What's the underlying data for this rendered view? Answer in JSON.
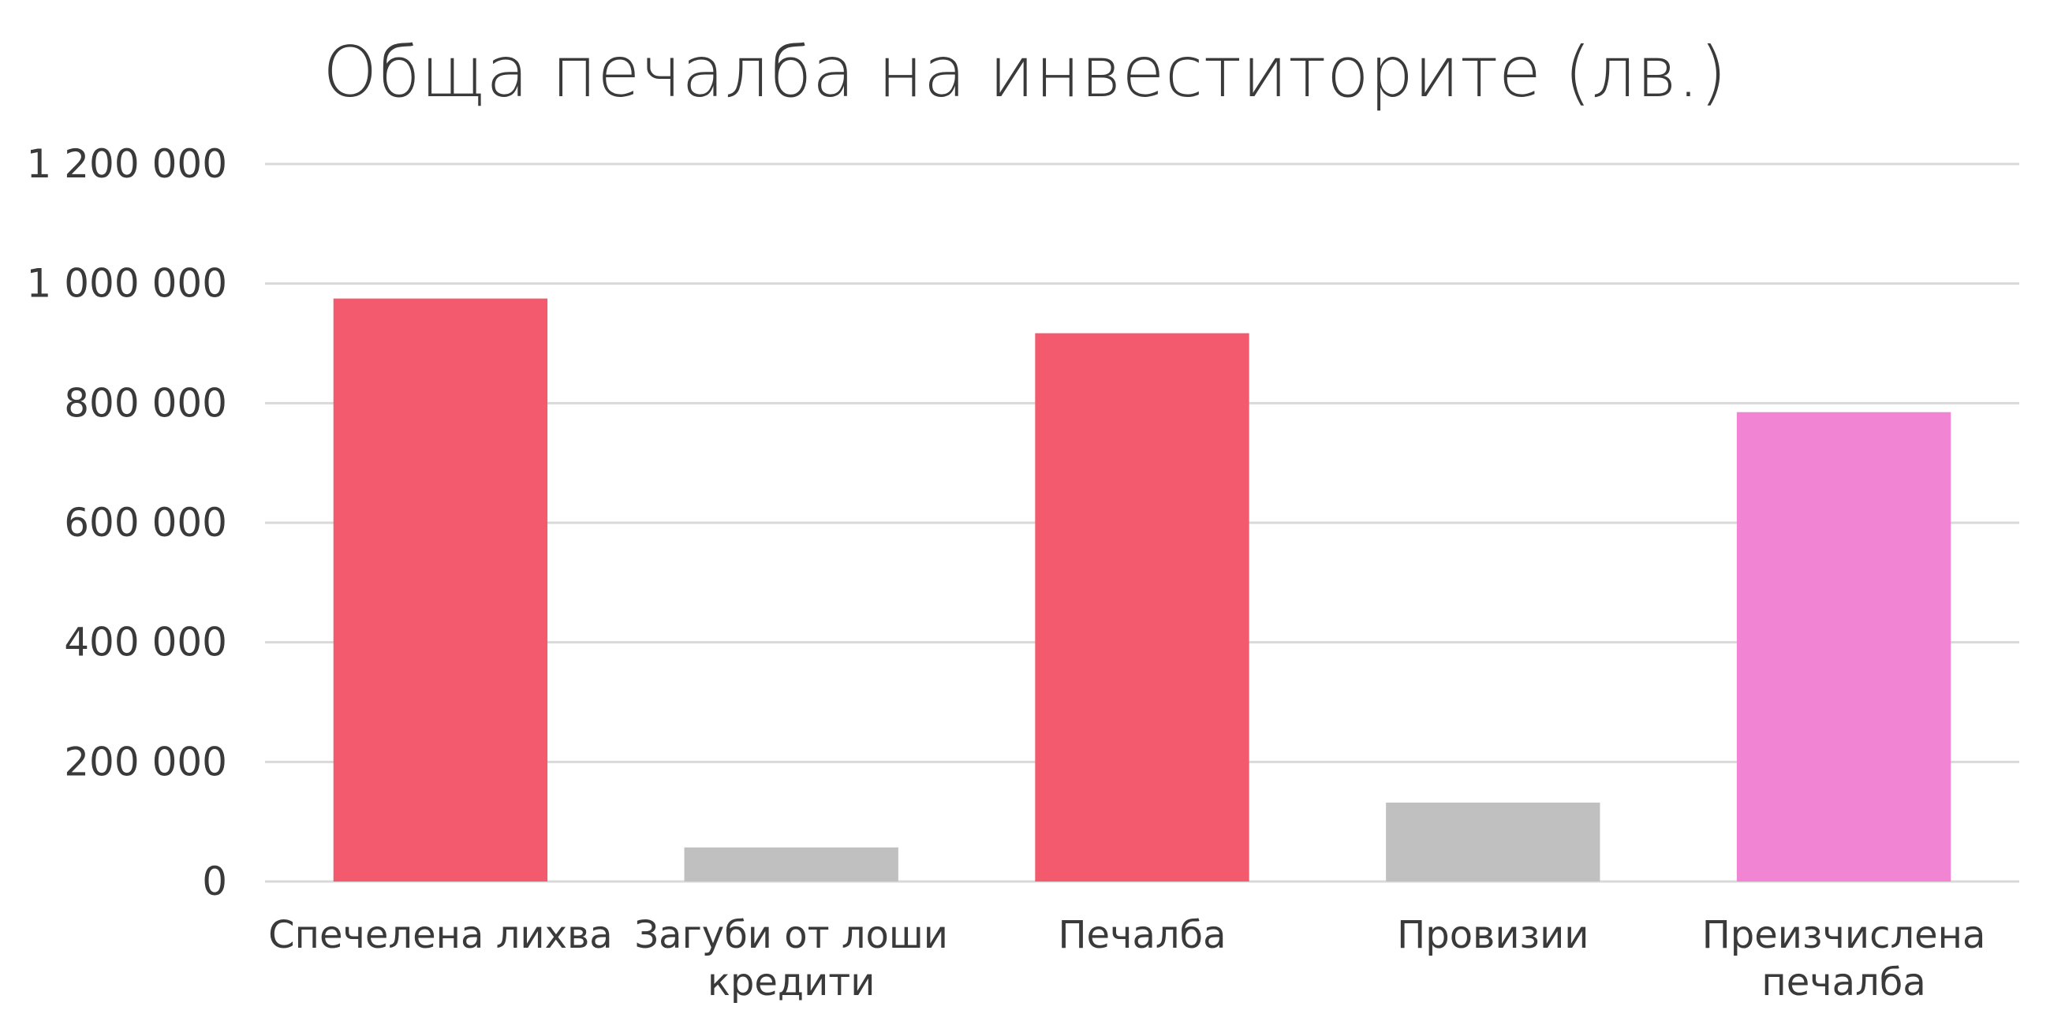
{
  "chart_data": {
    "type": "bar",
    "title": "Обща печалба на инвеститорите (лв.)",
    "xlabel": "",
    "ylabel": "",
    "categories": [
      [
        "Спечелена лихва"
      ],
      [
        "Загуби от лоши",
        "кредити"
      ],
      [
        "Печалба"
      ],
      [
        "Провизии"
      ],
      [
        "Преизчислена",
        "печалба"
      ]
    ],
    "values": [
      975000,
      57000,
      917000,
      132000,
      785000
    ],
    "bar_colors": [
      "#f45a6d",
      "#c0c0c0",
      "#f45a6d",
      "#c0c0c0",
      "#f185d4"
    ],
    "ylim": [
      0,
      1200000
    ],
    "yticks": [
      0,
      200000,
      400000,
      600000,
      800000,
      1000000,
      1200000
    ],
    "ytick_labels": [
      "0",
      "200 000",
      "400 000",
      "600 000",
      "800 000",
      "1 000 000",
      "1 200 000"
    ],
    "grid": true,
    "legend": "none"
  },
  "colors": {
    "text": "#3a3a3a",
    "grid": "#d9d9d9"
  }
}
